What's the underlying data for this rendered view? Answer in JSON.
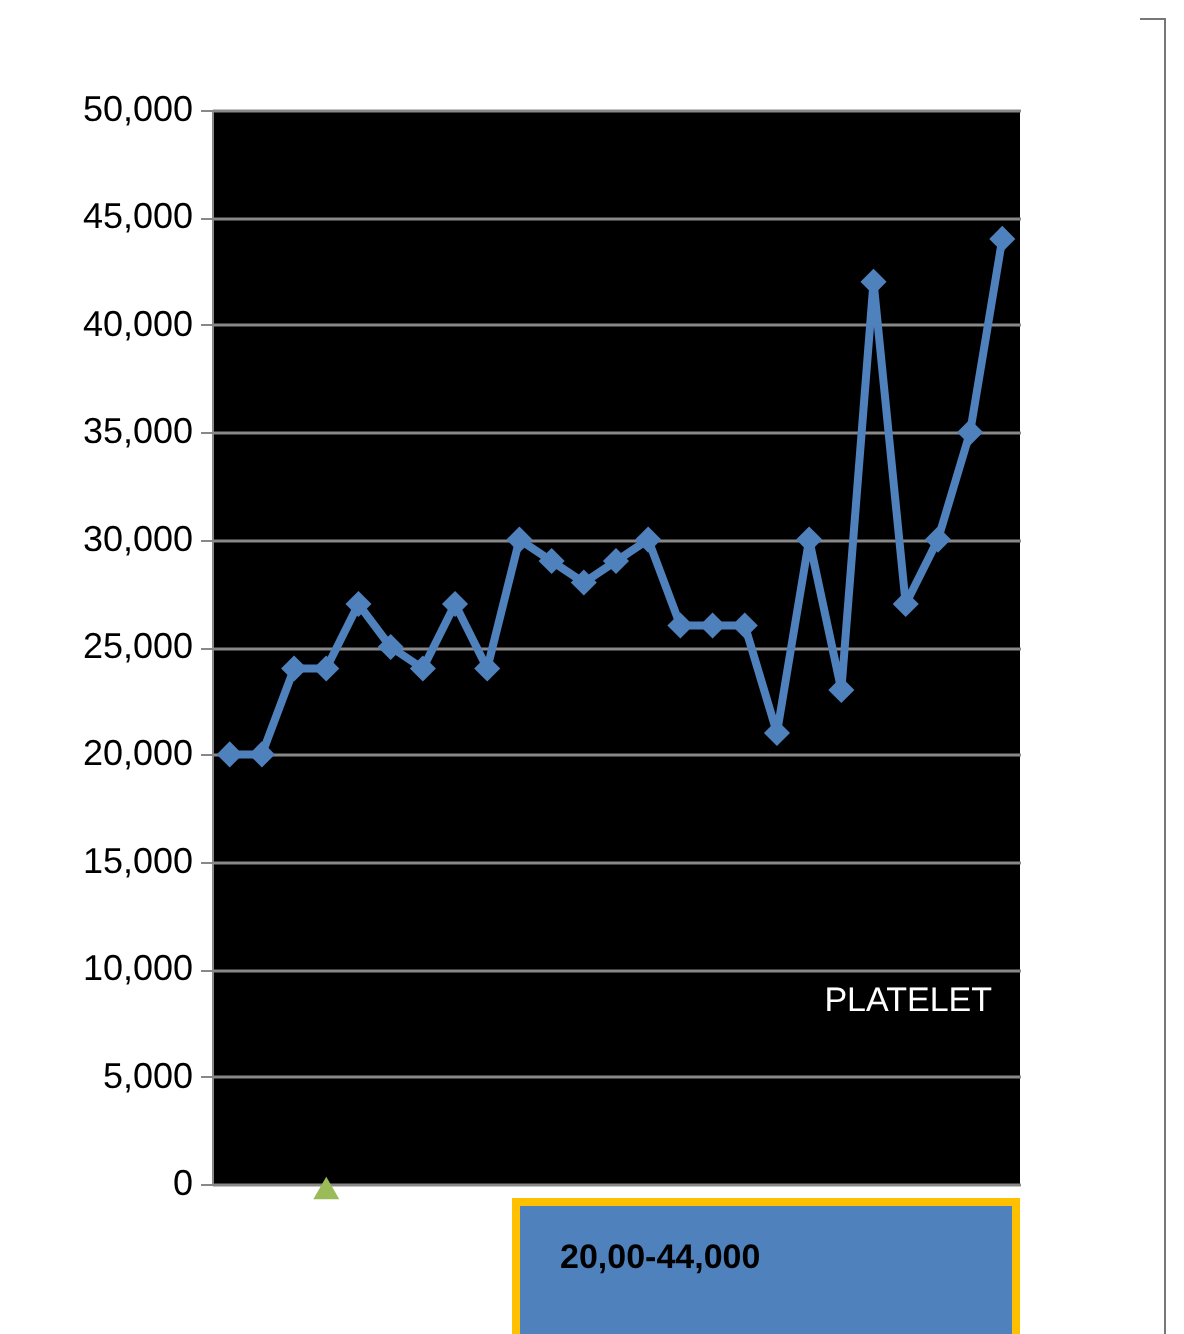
{
  "chart_data": {
    "type": "line",
    "categories": [
      null,
      null,
      null,
      null,
      null,
      null,
      null,
      null,
      null,
      null,
      null,
      null,
      null,
      null,
      null,
      null,
      null,
      null,
      null,
      null,
      null,
      null,
      null,
      null,
      null
    ],
    "series": [
      {
        "name": "PLATELET",
        "color": "#4f81bd",
        "marker": "diamond",
        "values": [
          20000,
          20000,
          24000,
          24000,
          27000,
          25000,
          24000,
          27000,
          24000,
          30000,
          29000,
          28000,
          29000,
          30000,
          26000,
          26000,
          26000,
          21000,
          30000,
          23000,
          42000,
          27000,
          30000,
          35000,
          44000
        ]
      },
      {
        "type": "scatter",
        "color": "#9bbb59",
        "marker": "triangle",
        "values": [
          null,
          null,
          null,
          0,
          null,
          null,
          null,
          null,
          null,
          null,
          null,
          null,
          null,
          null,
          null,
          null,
          null,
          null,
          null,
          null,
          null,
          null,
          null,
          null,
          null
        ]
      }
    ],
    "ylim": [
      0,
      50000
    ],
    "yticks": [
      0,
      {
        "value": 5000,
        "label": "5,000"
      },
      {
        "value": 10000,
        "label": "10,000"
      },
      {
        "value": 15000,
        "label": "15,000"
      },
      {
        "value": 20000,
        "label": "20,000"
      },
      {
        "value": 25000,
        "label": "25,000"
      },
      {
        "value": 30000,
        "label": "30,000"
      },
      {
        "value": 35000,
        "label": "35,000"
      },
      {
        "value": 40000,
        "label": "40,000"
      },
      {
        "value": 45000,
        "label": "45,000"
      },
      {
        "value": 50000,
        "label": "50,000"
      }
    ],
    "grid": "y",
    "annotations": [
      "20,00-44,000"
    ]
  }
}
